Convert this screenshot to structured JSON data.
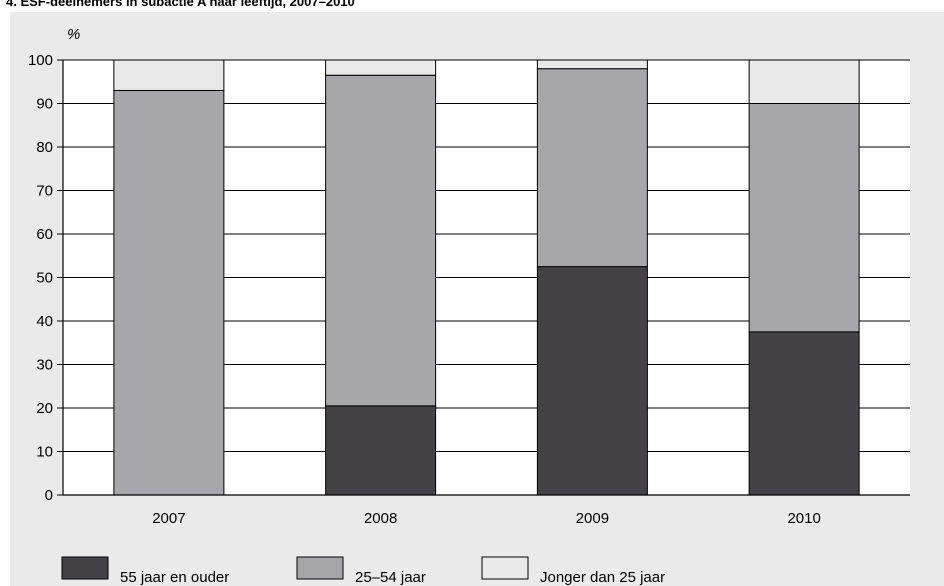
{
  "title": "4. ESF-deelnemers in subactie A naar leeftijd, 2007–2010",
  "colors": {
    "panel": "#eaeaeb",
    "plot": "#ffffff",
    "series_dark": "#454247",
    "series_mid": "#a7a6aa",
    "series_light": "#e9e9ea",
    "stroke": "#000000"
  },
  "chart_data": {
    "type": "bar",
    "stacked": true,
    "categories": [
      "2007",
      "2008",
      "2009",
      "2010"
    ],
    "ylabel": "%",
    "ylim": [
      0,
      100
    ],
    "yticks": [
      0,
      10,
      20,
      30,
      40,
      50,
      60,
      70,
      80,
      90,
      100
    ],
    "grid": true,
    "legend_position": "bottom",
    "series": [
      {
        "name": "55 jaar en ouder",
        "color": "#454247",
        "values": [
          0,
          20.5,
          52.5,
          37.5
        ]
      },
      {
        "name": "25–54 jaar",
        "color": "#a7a6aa",
        "values": [
          93,
          76,
          45.5,
          52.5
        ]
      },
      {
        "name": "Jonger dan 25 jaar",
        "color": "#e9e9ea",
        "values": [
          7,
          3.5,
          2,
          10
        ]
      }
    ]
  }
}
